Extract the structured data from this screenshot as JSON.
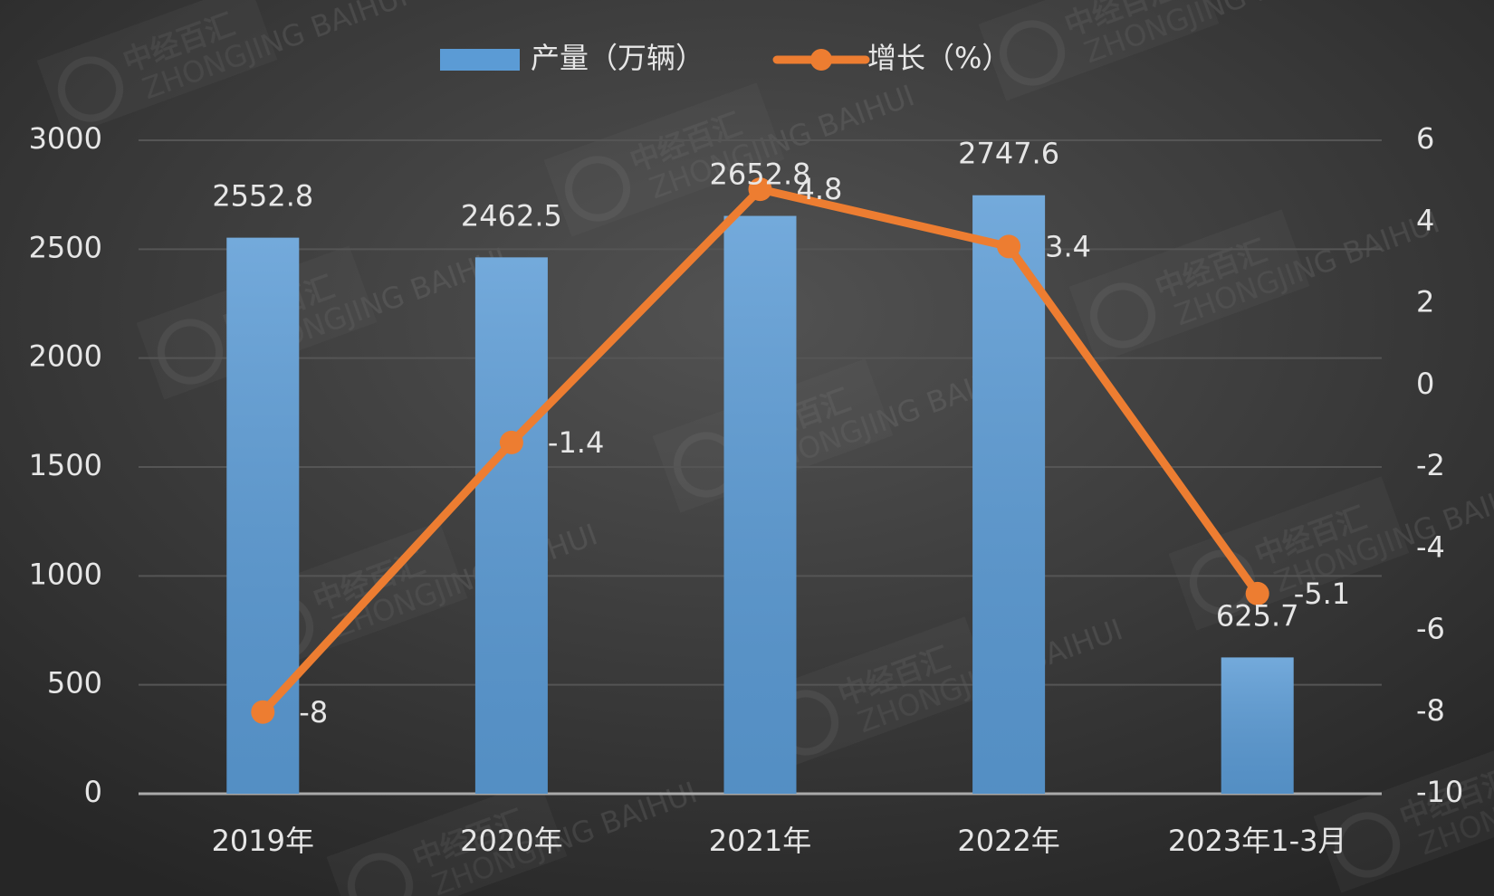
{
  "chart_data": {
    "type": "bar-line",
    "categories": [
      "2019年",
      "2020年",
      "2021年",
      "2022年",
      "2023年1-3月"
    ],
    "series": [
      {
        "name": "产量（万辆）",
        "type": "bar",
        "color": "#5b9bd5",
        "values": [
          2552.8,
          2462.5,
          2652.8,
          2747.6,
          625.7
        ]
      },
      {
        "name": "增长（%）",
        "type": "line",
        "axis": "y2",
        "color": "#ed7d31",
        "values": [
          -8,
          -1.4,
          4.8,
          3.4,
          -5.1
        ]
      }
    ],
    "ylim": [
      0,
      3000
    ],
    "yticks": [
      0,
      500,
      1000,
      1500,
      2000,
      2500,
      3000
    ],
    "y2lim": [
      -10,
      6
    ],
    "y2ticks": [
      -10,
      -8,
      -6,
      -4,
      -2,
      0,
      2,
      4,
      6
    ],
    "grid": true,
    "legend": "top",
    "watermark": {
      "text": "中经百汇",
      "subtext": "ZHONGJING BAIHUI"
    }
  }
}
